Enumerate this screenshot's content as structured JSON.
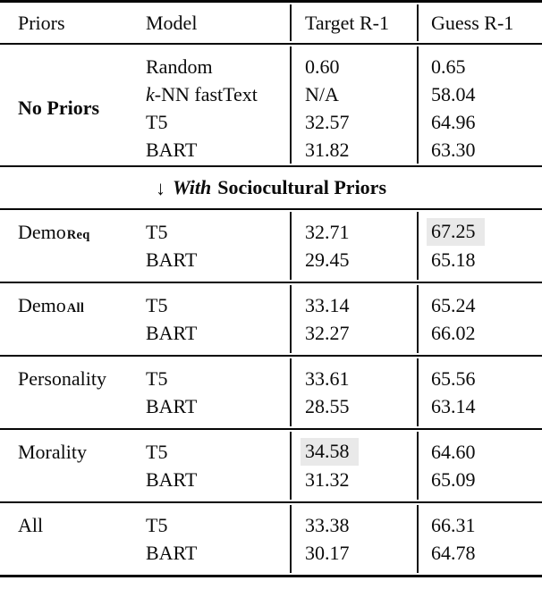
{
  "header": {
    "col1": "Priors",
    "col2": "Model",
    "col3": "Target R-1",
    "col4": "Guess R-1"
  },
  "subheader": {
    "arrow": "↓",
    "emph": "With",
    "rest": "Sociocultural Priors"
  },
  "highlight_color": "#e9e9e9",
  "sections": [
    {
      "prior": "No Priors",
      "rows": [
        {
          "model": "Random",
          "target": "0.60",
          "guess": "0.65"
        },
        {
          "model_italic": "k",
          "model": "-NN fastText",
          "target": "N/A",
          "guess": "58.04"
        },
        {
          "model": "T5",
          "target": "32.57",
          "guess": "64.96"
        },
        {
          "model": "BART",
          "target": "31.82",
          "guess": "63.30"
        }
      ]
    },
    {
      "prior": "Demo",
      "prior_sub": "Req",
      "rows": [
        {
          "model": "T5",
          "target": "32.71",
          "guess": "67.25"
        },
        {
          "model": "BART",
          "target": "29.45",
          "guess": "65.18"
        }
      ]
    },
    {
      "prior": "Demo",
      "prior_sub": "All",
      "rows": [
        {
          "model": "T5",
          "target": "33.14",
          "guess": "65.24"
        },
        {
          "model": "BART",
          "target": "32.27",
          "guess": "66.02"
        }
      ]
    },
    {
      "prior": "Personality",
      "rows": [
        {
          "model": "T5",
          "target": "33.61",
          "guess": "65.56"
        },
        {
          "model": "BART",
          "target": "28.55",
          "guess": "63.14"
        }
      ]
    },
    {
      "prior": "Morality",
      "rows": [
        {
          "model": "T5",
          "target": "34.58",
          "guess": "64.60"
        },
        {
          "model": "BART",
          "target": "31.32",
          "guess": "65.09"
        }
      ]
    },
    {
      "prior": "All",
      "rows": [
        {
          "model": "T5",
          "target": "33.38",
          "guess": "66.31"
        },
        {
          "model": "BART",
          "target": "30.17",
          "guess": "64.78"
        }
      ]
    }
  ]
}
